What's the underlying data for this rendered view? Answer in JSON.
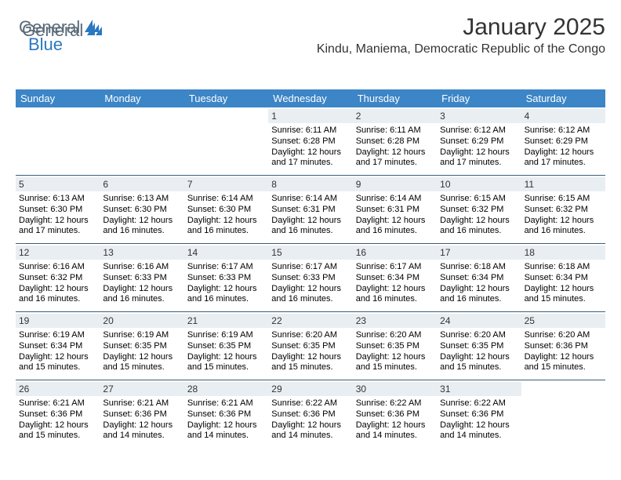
{
  "logo": {
    "word1": "General",
    "word2": "Blue"
  },
  "title": "January 2025",
  "location": "Kindu, Maniema, Democratic Republic of the Congo",
  "colors": {
    "header_bg": "#3c85c6",
    "header_text": "#ffffff",
    "daynum_bg": "#e9eef2",
    "week_divider": "#3a5d7a",
    "logo_gray": "#5a6a78",
    "logo_blue": "#2a79c0",
    "page_bg": "#ffffff"
  },
  "day_names": [
    "Sunday",
    "Monday",
    "Tuesday",
    "Wednesday",
    "Thursday",
    "Friday",
    "Saturday"
  ],
  "weeks": [
    [
      {
        "n": "",
        "l1": "",
        "l2": "",
        "l3": "",
        "l4": "",
        "empty": true
      },
      {
        "n": "",
        "l1": "",
        "l2": "",
        "l3": "",
        "l4": "",
        "empty": true
      },
      {
        "n": "",
        "l1": "",
        "l2": "",
        "l3": "",
        "l4": "",
        "empty": true
      },
      {
        "n": "1",
        "l1": "Sunrise: 6:11 AM",
        "l2": "Sunset: 6:28 PM",
        "l3": "Daylight: 12 hours",
        "l4": "and 17 minutes."
      },
      {
        "n": "2",
        "l1": "Sunrise: 6:11 AM",
        "l2": "Sunset: 6:28 PM",
        "l3": "Daylight: 12 hours",
        "l4": "and 17 minutes."
      },
      {
        "n": "3",
        "l1": "Sunrise: 6:12 AM",
        "l2": "Sunset: 6:29 PM",
        "l3": "Daylight: 12 hours",
        "l4": "and 17 minutes."
      },
      {
        "n": "4",
        "l1": "Sunrise: 6:12 AM",
        "l2": "Sunset: 6:29 PM",
        "l3": "Daylight: 12 hours",
        "l4": "and 17 minutes."
      }
    ],
    [
      {
        "n": "5",
        "l1": "Sunrise: 6:13 AM",
        "l2": "Sunset: 6:30 PM",
        "l3": "Daylight: 12 hours",
        "l4": "and 17 minutes."
      },
      {
        "n": "6",
        "l1": "Sunrise: 6:13 AM",
        "l2": "Sunset: 6:30 PM",
        "l3": "Daylight: 12 hours",
        "l4": "and 16 minutes."
      },
      {
        "n": "7",
        "l1": "Sunrise: 6:14 AM",
        "l2": "Sunset: 6:30 PM",
        "l3": "Daylight: 12 hours",
        "l4": "and 16 minutes."
      },
      {
        "n": "8",
        "l1": "Sunrise: 6:14 AM",
        "l2": "Sunset: 6:31 PM",
        "l3": "Daylight: 12 hours",
        "l4": "and 16 minutes."
      },
      {
        "n": "9",
        "l1": "Sunrise: 6:14 AM",
        "l2": "Sunset: 6:31 PM",
        "l3": "Daylight: 12 hours",
        "l4": "and 16 minutes."
      },
      {
        "n": "10",
        "l1": "Sunrise: 6:15 AM",
        "l2": "Sunset: 6:32 PM",
        "l3": "Daylight: 12 hours",
        "l4": "and 16 minutes."
      },
      {
        "n": "11",
        "l1": "Sunrise: 6:15 AM",
        "l2": "Sunset: 6:32 PM",
        "l3": "Daylight: 12 hours",
        "l4": "and 16 minutes."
      }
    ],
    [
      {
        "n": "12",
        "l1": "Sunrise: 6:16 AM",
        "l2": "Sunset: 6:32 PM",
        "l3": "Daylight: 12 hours",
        "l4": "and 16 minutes."
      },
      {
        "n": "13",
        "l1": "Sunrise: 6:16 AM",
        "l2": "Sunset: 6:33 PM",
        "l3": "Daylight: 12 hours",
        "l4": "and 16 minutes."
      },
      {
        "n": "14",
        "l1": "Sunrise: 6:17 AM",
        "l2": "Sunset: 6:33 PM",
        "l3": "Daylight: 12 hours",
        "l4": "and 16 minutes."
      },
      {
        "n": "15",
        "l1": "Sunrise: 6:17 AM",
        "l2": "Sunset: 6:33 PM",
        "l3": "Daylight: 12 hours",
        "l4": "and 16 minutes."
      },
      {
        "n": "16",
        "l1": "Sunrise: 6:17 AM",
        "l2": "Sunset: 6:34 PM",
        "l3": "Daylight: 12 hours",
        "l4": "and 16 minutes."
      },
      {
        "n": "17",
        "l1": "Sunrise: 6:18 AM",
        "l2": "Sunset: 6:34 PM",
        "l3": "Daylight: 12 hours",
        "l4": "and 16 minutes."
      },
      {
        "n": "18",
        "l1": "Sunrise: 6:18 AM",
        "l2": "Sunset: 6:34 PM",
        "l3": "Daylight: 12 hours",
        "l4": "and 15 minutes."
      }
    ],
    [
      {
        "n": "19",
        "l1": "Sunrise: 6:19 AM",
        "l2": "Sunset: 6:34 PM",
        "l3": "Daylight: 12 hours",
        "l4": "and 15 minutes."
      },
      {
        "n": "20",
        "l1": "Sunrise: 6:19 AM",
        "l2": "Sunset: 6:35 PM",
        "l3": "Daylight: 12 hours",
        "l4": "and 15 minutes."
      },
      {
        "n": "21",
        "l1": "Sunrise: 6:19 AM",
        "l2": "Sunset: 6:35 PM",
        "l3": "Daylight: 12 hours",
        "l4": "and 15 minutes."
      },
      {
        "n": "22",
        "l1": "Sunrise: 6:20 AM",
        "l2": "Sunset: 6:35 PM",
        "l3": "Daylight: 12 hours",
        "l4": "and 15 minutes."
      },
      {
        "n": "23",
        "l1": "Sunrise: 6:20 AM",
        "l2": "Sunset: 6:35 PM",
        "l3": "Daylight: 12 hours",
        "l4": "and 15 minutes."
      },
      {
        "n": "24",
        "l1": "Sunrise: 6:20 AM",
        "l2": "Sunset: 6:35 PM",
        "l3": "Daylight: 12 hours",
        "l4": "and 15 minutes."
      },
      {
        "n": "25",
        "l1": "Sunrise: 6:20 AM",
        "l2": "Sunset: 6:36 PM",
        "l3": "Daylight: 12 hours",
        "l4": "and 15 minutes."
      }
    ],
    [
      {
        "n": "26",
        "l1": "Sunrise: 6:21 AM",
        "l2": "Sunset: 6:36 PM",
        "l3": "Daylight: 12 hours",
        "l4": "and 15 minutes."
      },
      {
        "n": "27",
        "l1": "Sunrise: 6:21 AM",
        "l2": "Sunset: 6:36 PM",
        "l3": "Daylight: 12 hours",
        "l4": "and 14 minutes."
      },
      {
        "n": "28",
        "l1": "Sunrise: 6:21 AM",
        "l2": "Sunset: 6:36 PM",
        "l3": "Daylight: 12 hours",
        "l4": "and 14 minutes."
      },
      {
        "n": "29",
        "l1": "Sunrise: 6:22 AM",
        "l2": "Sunset: 6:36 PM",
        "l3": "Daylight: 12 hours",
        "l4": "and 14 minutes."
      },
      {
        "n": "30",
        "l1": "Sunrise: 6:22 AM",
        "l2": "Sunset: 6:36 PM",
        "l3": "Daylight: 12 hours",
        "l4": "and 14 minutes."
      },
      {
        "n": "31",
        "l1": "Sunrise: 6:22 AM",
        "l2": "Sunset: 6:36 PM",
        "l3": "Daylight: 12 hours",
        "l4": "and 14 minutes."
      },
      {
        "n": "",
        "l1": "",
        "l2": "",
        "l3": "",
        "l4": "",
        "empty": true
      }
    ]
  ]
}
